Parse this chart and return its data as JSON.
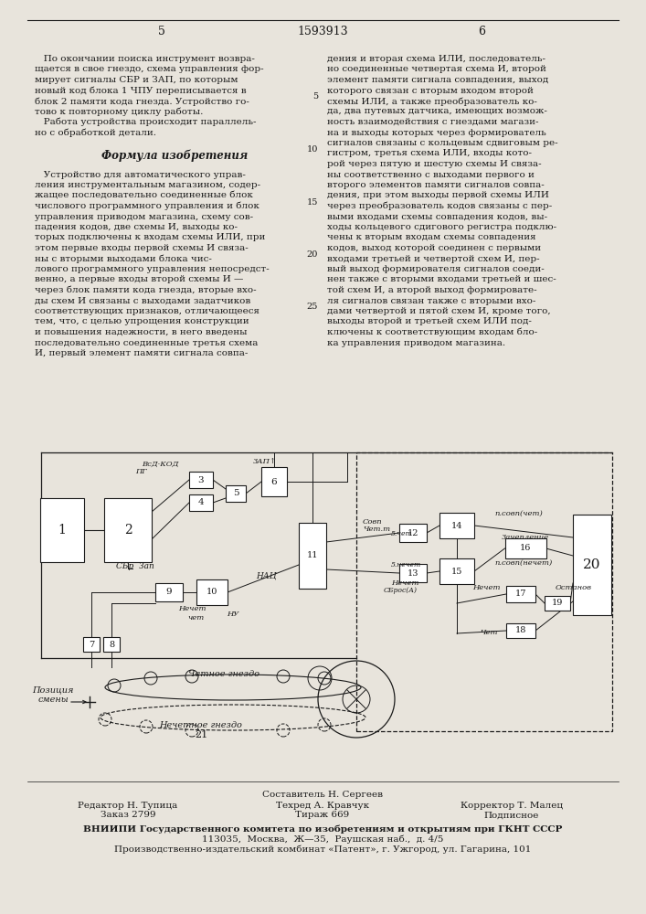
{
  "page_number_left": "5",
  "patent_number": "1593913",
  "page_number_right": "6",
  "bg_color": "#e8e4dc",
  "text_color": "#1a1a1a",
  "left_column_lines": [
    "   По окончании поиска инструмент возвра-",
    "щается в свое гнездо, схема управления фор-",
    "мирует сигналы СБР и ЗАП, по которым",
    "новый код блока 1 ЧПУ переписывается в",
    "блок 2 памяти кода гнезда. Устройство го-",
    "тово к повторному циклу работы.",
    "   Работа устройства происходит параллель-",
    "но с обработкой детали.",
    "",
    "         Формула изобретения",
    "",
    "   Устройство для автоматического управ-",
    "ления инструментальным магазином, содер-",
    "жащее последовательно соединенные блок",
    "числового программного управления и блок",
    "управления приводом магазина, схему сов-",
    "падения кодов, две схемы И, выходы ко-",
    "торых подключены к входам схемы ИЛИ, при",
    "этом первые входы первой схемы И связа-",
    "ны с вторыми выходами блока чис-",
    "лового программного управления непосредст-",
    "венно, а первые входы второй схемы И —",
    "через блок памяти кода гнезда, вторые вхо-",
    "ды схем И связаны с выходами задатчиков",
    "соответствующих признаков, отличающееся",
    "тем, что, с целью упрощения конструкции",
    "и повышения надежности, в него введены",
    "последовательно соединенные третья схема",
    "И, первый элемент памяти сигнала совпа-"
  ],
  "right_column_lines": [
    "дения и вторая схема ИЛИ, последователь-",
    "но соединенные четвертая схема И, второй",
    "элемент памяти сигнала совпадения, выход",
    "которого связан с вторым входом второй",
    "схемы ИЛИ, а также преобразователь ко-",
    "да, два путевых датчика, имеющих возмож-",
    "ность взаимодействия с гнездами магази-",
    "на и выходы которых через формирователь",
    "сигналов связаны с кольцевым сдвиговым ре-",
    "гистром, третья схема ИЛИ, входы кото-",
    "рой через пятую и шестую схемы И связа-",
    "ны соответственно с выходами первого и",
    "второго элементов памяти сигналов совпа-",
    "дения, при этом выходы первой схемы ИЛИ",
    "через преобразователь кодов связаны с пер-",
    "выми входами схемы совпадения кодов, вы-",
    "ходы кольцевого сдигового регистра подклю-",
    "чены к вторым входам схемы совпадения",
    "кодов, выход которой соединен с первыми",
    "входами третьей и четвертой схем И, пер-",
    "вый выход формирователя сигналов соеди-",
    "нен также с вторыми входами третьей и шес-",
    "той схем И, а второй выход формировате-",
    "ля сигналов связан также с вторыми вхо-",
    "дами четвертой и пятой схем И, кроме того,",
    "выходы второй и третьей схем ИЛИ под-",
    "ключены к соответствующим входам бло-",
    "ка управления приводом магазина."
  ],
  "line_numbers": [
    "5",
    "10",
    "15",
    "20",
    "25"
  ],
  "footer_left1": "Редактор Н. Тупица",
  "footer_left2": "Заказ 2799",
  "footer_center0": "Составитель Н. Сергеев",
  "footer_center1": "Техред А. Кравчук",
  "footer_center2": "Тираж 669",
  "footer_right1": "Корректор Т. Малец",
  "footer_right2": "Подписное",
  "footer_vniipi": "ВНИИПИ Государственного комитета по изобретениям и открытиям при ГКНТ СССР",
  "footer_address": "113035,  Москва,  Ж—35,  Раушская наб.,  д. 4/5",
  "footer_factory": "Производственно-издательский комбинат «Патент», г. Ужгород, ул. Гагарина, 101"
}
